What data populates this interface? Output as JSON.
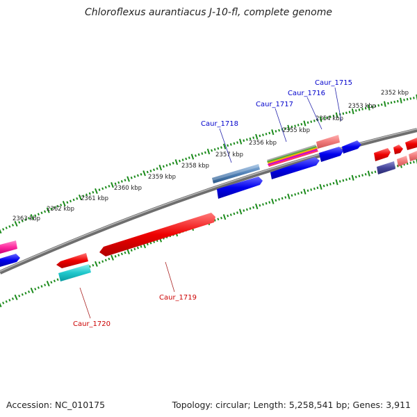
{
  "title": "Chloroflexus aurantiacus J-10-fl, complete genome",
  "footer": {
    "accession": "Accession: NC_010175",
    "summary": "Topology: circular; Length: 5,258,541 bp; Genes: 3,911"
  },
  "colors": {
    "backbone": "#888888",
    "ruler": "#1a8a1a",
    "plus_label": "#0000cc",
    "minus_label": "#cc0000"
  },
  "ruler_labels": [
    "2352 kbp",
    "2353 kbp",
    "2354 kbp",
    "2355 kbp",
    "2356 kbp",
    "2357 kbp",
    "2358 kbp",
    "2359 kbp",
    "2360 kbp",
    "2361 kbp",
    "2362 kbp",
    "2363 kbp"
  ],
  "gene_labels": [
    {
      "text": "Caur_1715",
      "strand": "+"
    },
    {
      "text": "Caur_1716",
      "strand": "+"
    },
    {
      "text": "Caur_1717",
      "strand": "+"
    },
    {
      "text": "Caur_1718",
      "strand": "+"
    },
    {
      "text": "Caur_1719",
      "strand": "-"
    },
    {
      "text": "Caur_1720",
      "strand": "-"
    }
  ]
}
